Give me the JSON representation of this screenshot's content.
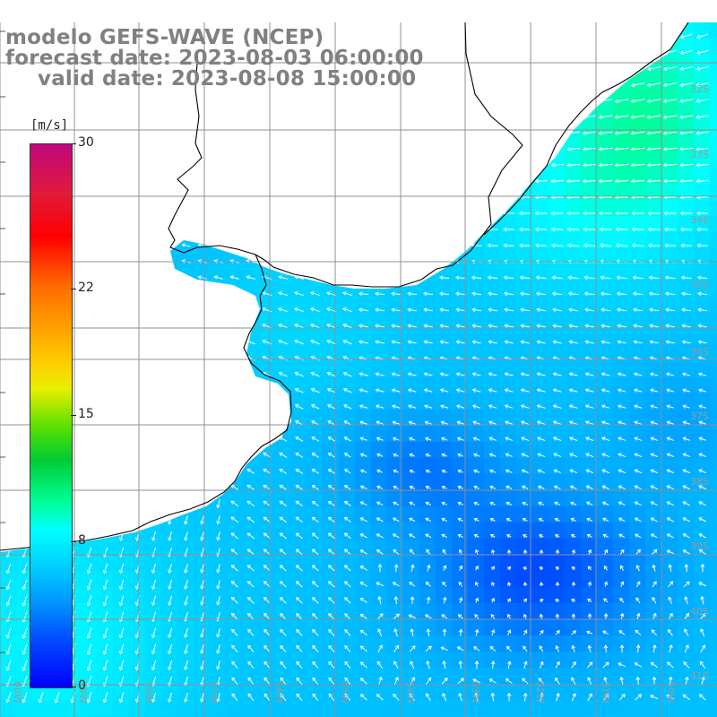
{
  "title": {
    "line1": "modelo GEFS-WAVE (NCEP)",
    "line2": "forecast date: 2023-08-03 06:00:00",
    "line3": "valid date: 2023-08-08 15:00:00"
  },
  "colorbar": {
    "unit": "[m/s]",
    "ticks": [
      "30",
      "22",
      "15",
      "8",
      "0"
    ],
    "tick_values": [
      30,
      22,
      15,
      8,
      0
    ],
    "min": 0,
    "max": 30
  },
  "map": {
    "variable": "wind speed",
    "lat_labels": [
      "32S",
      "33S",
      "34S",
      "35S",
      "36S",
      "37S",
      "38S",
      "39S",
      "40S",
      "41S"
    ],
    "lon_labels": [
      "60W",
      "59W",
      "58W",
      "57W",
      "56W",
      "55W",
      "54W",
      "53W",
      "52W",
      "51W",
      "50W"
    ],
    "colors": {
      "land": "#ffffff",
      "grid": "#909090",
      "coast": "#000000",
      "arrows": "#ffffff",
      "title_text": "#808080",
      "label_text": "#9a9a9a"
    }
  }
}
